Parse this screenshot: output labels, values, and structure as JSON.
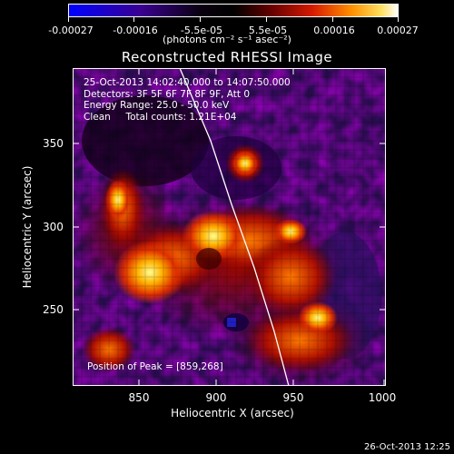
{
  "colorbar": {
    "ticks": [
      "-0.00027",
      "-0.00016",
      "-5.5e-05",
      "5.5e-05",
      "0.00016",
      "0.00027"
    ],
    "units": "(photons cm⁻² s⁻¹ asec⁻²)",
    "colors": [
      "#0000ff",
      "#1a0050",
      "#000000",
      "#5a0000",
      "#d01800",
      "#ff9a00",
      "#ffffff"
    ]
  },
  "title": "Reconstructed RHESSI Image",
  "overlay": {
    "line1": "25-Oct-2013 14:02:40.000 to 14:07:50.000",
    "line2": "Detectors: 3F 5F 6F 7F 8F 9F, Att 0",
    "line3": "Energy Range: 25.0 - 50.0 keV",
    "line4": "Clean     Total counts: 1.21E+04",
    "peak": "Position of Peak = [859,268]"
  },
  "axes": {
    "xlabel": "Heliocentric X (arcsec)",
    "ylabel": "Heliocentric Y (arcsec)",
    "xticks": [
      "850",
      "900",
      "950",
      "1000"
    ],
    "yticks": [
      "250",
      "300",
      "350"
    ]
  },
  "footer": "26-Oct-2013 12:25"
}
